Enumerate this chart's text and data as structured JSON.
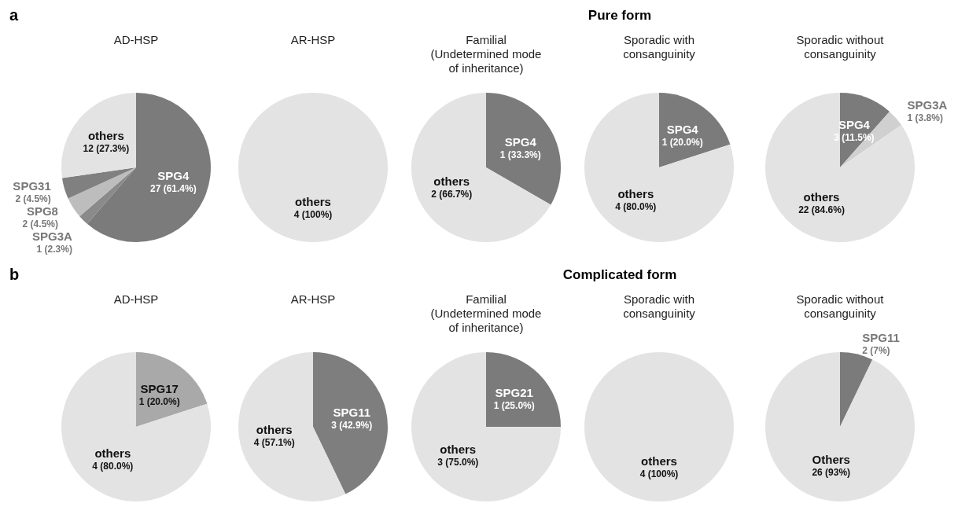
{
  "chart_data": [
    {
      "type": "pie",
      "title": "AD-HSP",
      "annotations": [
        "a",
        "Pure form"
      ],
      "categories": [
        "SPG4",
        "SPG3A",
        "SPG8",
        "SPG31",
        "others"
      ],
      "values": [
        27,
        1,
        2,
        2,
        12
      ],
      "value_labels": [
        "27 (61.4%)",
        "1 (2.3%)",
        "2 (4.5%)",
        "2 (4.5%)",
        "12 (27.3%)"
      ],
      "colors": [
        "#7b7b7b",
        "#8a8a8a",
        "#bdbdbd",
        "#808080",
        "#e3e3e3"
      ],
      "legend": false
    },
    {
      "type": "pie",
      "title": "AR-HSP",
      "categories": [
        "others"
      ],
      "values": [
        4
      ],
      "value_labels": [
        "4 (100%)"
      ],
      "colors": [
        "#e3e3e3"
      ],
      "legend": false
    },
    {
      "type": "pie",
      "title": "Familial\n(Undetermined mode\nof inheritance)",
      "categories": [
        "SPG4",
        "others"
      ],
      "values": [
        1,
        2
      ],
      "value_labels": [
        "1 (33.3%)",
        "2 (66.7%)"
      ],
      "colors": [
        "#7b7b7b",
        "#e3e3e3"
      ],
      "legend": false
    },
    {
      "type": "pie",
      "title": "Sporadic with\nconsanguinity",
      "categories": [
        "SPG4",
        "others"
      ],
      "values": [
        1,
        4
      ],
      "value_labels": [
        "1 (20.0%)",
        "4 (80.0%)"
      ],
      "colors": [
        "#7b7b7b",
        "#e3e3e3"
      ],
      "legend": false
    },
    {
      "type": "pie",
      "title": "Sporadic without\nconsanguinity",
      "categories": [
        "SPG4",
        "SPG3A",
        "others"
      ],
      "values": [
        3,
        1,
        22
      ],
      "value_labels": [
        "3 (11.5%)",
        "1 (3.8%)",
        "22 (84.6%)"
      ],
      "colors": [
        "#7b7b7b",
        "#d0d0d0",
        "#e3e3e3"
      ],
      "legend": false
    },
    {
      "type": "pie",
      "title": "AD-HSP",
      "annotations": [
        "b",
        "Complicated form"
      ],
      "categories": [
        "SPG17",
        "others"
      ],
      "values": [
        1,
        4
      ],
      "value_labels": [
        "1 (20.0%)",
        "4 (80.0%)"
      ],
      "colors": [
        "#a9a9a9",
        "#e3e3e3"
      ],
      "legend": false
    },
    {
      "type": "pie",
      "title": "AR-HSP",
      "categories": [
        "SPG11",
        "others"
      ],
      "values": [
        3,
        4
      ],
      "value_labels": [
        "3 (42.9%)",
        "4 (57.1%)"
      ],
      "colors": [
        "#7e7e7e",
        "#e3e3e3"
      ],
      "legend": false
    },
    {
      "type": "pie",
      "title": "Familial\n(Undetermined mode\nof inheritance)",
      "categories": [
        "SPG21",
        "others"
      ],
      "values": [
        1,
        3
      ],
      "value_labels": [
        "1 (25.0%)",
        "3 (75.0%)"
      ],
      "colors": [
        "#7b7b7b",
        "#e3e3e3"
      ],
      "legend": false
    },
    {
      "type": "pie",
      "title": "Sporadic with\nconsanguinity",
      "categories": [
        "others"
      ],
      "values": [
        4
      ],
      "value_labels": [
        "4 (100%)"
      ],
      "colors": [
        "#e3e3e3"
      ],
      "legend": false
    },
    {
      "type": "pie",
      "title": "Sporadic without\nconsanguinity",
      "categories": [
        "SPG11",
        "Others"
      ],
      "values": [
        2,
        26
      ],
      "value_labels": [
        "2 (7%)",
        "26 (93%)"
      ],
      "colors": [
        "#7b7b7b",
        "#e3e3e3"
      ],
      "legend": false
    }
  ]
}
